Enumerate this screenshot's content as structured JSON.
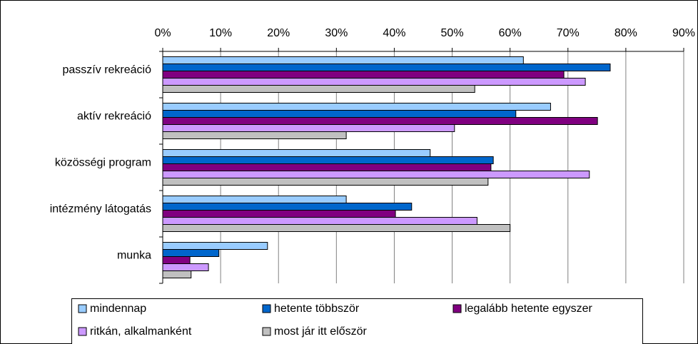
{
  "chart_data": {
    "type": "bar",
    "orientation": "horizontal",
    "categories": [
      "passzív rekreáció",
      "aktív rekreáció",
      "közösségi program",
      "intézmény látogatás",
      "munka"
    ],
    "series": [
      {
        "name": "mindennap",
        "color": "#99ccff",
        "values": [
          62.3,
          67.0,
          46.2,
          31.7,
          18.1
        ]
      },
      {
        "name": "hetente többször",
        "color": "#0066cc",
        "values": [
          77.3,
          61.0,
          57.1,
          43.0,
          9.7
        ]
      },
      {
        "name": "legalább hetente egyszer",
        "color": "#800080",
        "values": [
          69.3,
          75.1,
          56.7,
          40.2,
          4.7
        ]
      },
      {
        "name": "ritkán, alkalmanként",
        "color": "#cc99ff",
        "values": [
          73.0,
          50.4,
          73.7,
          54.3,
          7.9
        ]
      },
      {
        "name": "most jár itt először",
        "color": "#c0c0c0",
        "values": [
          53.9,
          31.7,
          56.2,
          60.0,
          4.9
        ]
      }
    ],
    "xlim": [
      0,
      90
    ],
    "xticks": [
      {
        "value": 0,
        "label": "0%"
      },
      {
        "value": 10,
        "label": "10%"
      },
      {
        "value": 20,
        "label": "20%"
      },
      {
        "value": 30,
        "label": "30%"
      },
      {
        "value": 40,
        "label": "40%"
      },
      {
        "value": 50,
        "label": "50%"
      },
      {
        "value": 60,
        "label": "60%"
      },
      {
        "value": 70,
        "label": "70%"
      },
      {
        "value": 80,
        "label": "80%"
      },
      {
        "value": 90,
        "label": "90%"
      }
    ],
    "grid": true,
    "legend": "bottom"
  }
}
